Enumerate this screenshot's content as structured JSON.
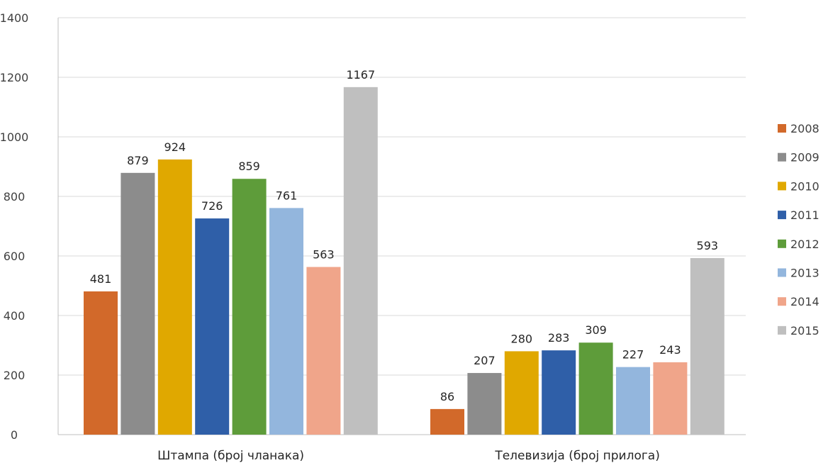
{
  "chart_data": {
    "type": "bar",
    "title": "",
    "xlabel": "",
    "ylabel": "",
    "categories": [
      "Штампа (број чланака)",
      "Телевизија (број прилога)"
    ],
    "ylim": [
      0,
      1400
    ],
    "yticks": [
      0,
      200,
      400,
      600,
      800,
      1000,
      1200,
      1400
    ],
    "grid": true,
    "legend_position": "right",
    "data_labels": true,
    "series": [
      {
        "name": "2008",
        "color": "#d2692a",
        "values": [
          481,
          86
        ]
      },
      {
        "name": "2009",
        "color": "#8c8c8c",
        "values": [
          879,
          207
        ]
      },
      {
        "name": "2010",
        "color": "#e0a800",
        "values": [
          924,
          280
        ]
      },
      {
        "name": "2011",
        "color": "#2f5fa8",
        "values": [
          726,
          283
        ]
      },
      {
        "name": "2012",
        "color": "#5e9c3a",
        "values": [
          859,
          309
        ]
      },
      {
        "name": "2013",
        "color": "#93b6dd",
        "values": [
          761,
          227
        ]
      },
      {
        "name": "2014",
        "color": "#f0a58a",
        "values": [
          563,
          243
        ]
      },
      {
        "name": "2015",
        "color": "#bfbfbf",
        "values": [
          1167,
          593
        ]
      }
    ]
  }
}
